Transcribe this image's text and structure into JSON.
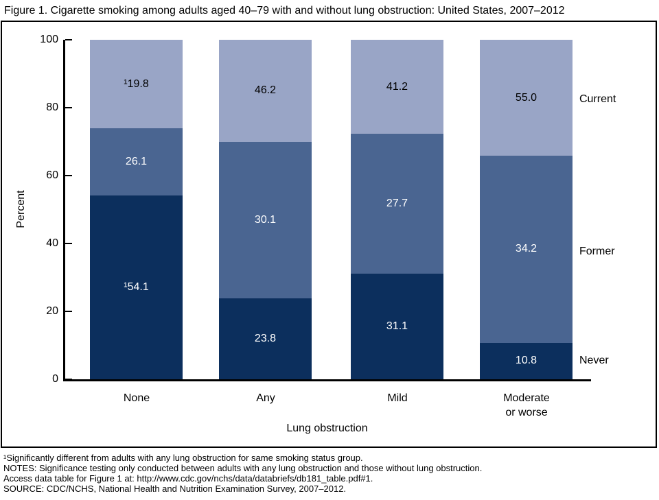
{
  "title": "Figure 1. Cigarette smoking among adults aged 40–79 with and without lung obstruction: United States, 2007–2012",
  "chart": {
    "ylabel": "Percent",
    "xlabel": "Lung obstruction",
    "yticks": [
      100,
      80,
      60,
      40,
      20,
      0
    ],
    "legend": [
      "Current",
      "Former",
      "Never"
    ],
    "bars": [
      {
        "category": "None",
        "segments": [
          {
            "role": "current",
            "text": "¹19.8",
            "display_height_pct": 26.1
          },
          {
            "role": "former",
            "text": "26.1",
            "display_height_pct": 19.8
          },
          {
            "role": "never",
            "text": "¹54.1",
            "display_height_pct": 54.1
          }
        ]
      },
      {
        "category": "Any",
        "segments": [
          {
            "role": "current",
            "text": "46.2",
            "display_height_pct": 30.1
          },
          {
            "role": "former",
            "text": "30.1",
            "display_height_pct": 46.2
          },
          {
            "role": "never",
            "text": "23.8",
            "display_height_pct": 23.8
          }
        ]
      },
      {
        "category": "Mild",
        "segments": [
          {
            "role": "current",
            "text": "41.2",
            "display_height_pct": 27.7
          },
          {
            "role": "former",
            "text": "27.7",
            "display_height_pct": 41.2
          },
          {
            "role": "never",
            "text": "31.1",
            "display_height_pct": 31.1
          }
        ]
      },
      {
        "category": "Moderate\nor worse",
        "segments": [
          {
            "role": "current",
            "text": "55.0",
            "display_height_pct": 34.2
          },
          {
            "role": "former",
            "text": "34.2",
            "display_height_pct": 55.0
          },
          {
            "role": "never",
            "text": "10.8",
            "display_height_pct": 10.8
          }
        ]
      }
    ]
  },
  "chart_data": {
    "type": "bar",
    "stacked": true,
    "title": "Figure 1. Cigarette smoking among adults aged 40–79 with and without lung obstruction: United States, 2007–2012",
    "categories": [
      "None",
      "Any",
      "Mild",
      "Moderate or worse"
    ],
    "series": [
      {
        "name": "Never",
        "values": [
          54.1,
          23.8,
          31.1,
          10.8
        ]
      },
      {
        "name": "Former",
        "values": [
          26.1,
          30.1,
          27.7,
          34.2
        ]
      },
      {
        "name": "Current",
        "values": [
          19.8,
          46.2,
          41.2,
          55.0
        ]
      }
    ],
    "value_label_prefix_markers": {
      "None": {
        "Never": "¹",
        "Current": "¹"
      }
    },
    "displayed_segment_heights_bottom_to_top": [
      [
        54.1,
        19.8,
        26.1
      ],
      [
        23.8,
        46.2,
        30.1
      ],
      [
        31.1,
        41.2,
        27.7
      ],
      [
        10.8,
        55.0,
        34.2
      ]
    ],
    "xlabel": "Lung obstruction",
    "ylabel": "Percent",
    "ylim": [
      0,
      100
    ],
    "yticks": [
      0,
      20,
      40,
      60,
      80,
      100
    ],
    "grid": false,
    "legend_position": "right-outside"
  },
  "colors": {
    "current_segment": "#99a5c6",
    "former_segment": "#4a6591",
    "never_segment": "#0c2f5d",
    "axis": "#000000",
    "background": "#ffffff"
  },
  "footnotes": [
    "¹Significantly different from adults with any lung obstruction for same smoking status group.",
    "NOTES: Significance testing only conducted between adults with any lung obstruction and those without lung obstruction.",
    "Access data table for Figure 1 at: http://www.cdc.gov/nchs/data/databriefs/db181_table.pdf#1.",
    "SOURCE: CDC/NCHS, National Health and Nutrition Examination Survey, 2007–2012."
  ]
}
